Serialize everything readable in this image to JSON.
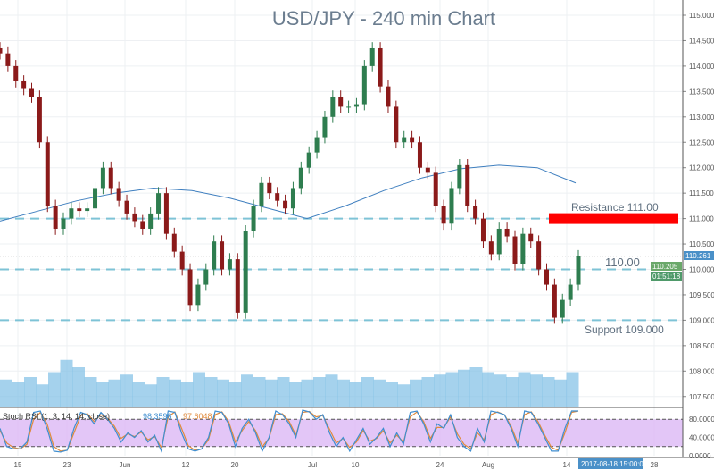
{
  "chart_data": {
    "type": "candlestick",
    "title": "USD/JPY - 240 min Chart",
    "price_axis": {
      "ticks": [
        "115.000",
        "114.500",
        "114.000",
        "113.500",
        "113.000",
        "112.500",
        "112.000",
        "111.500",
        "111.000",
        "110.500",
        "110.000",
        "109.500",
        "109.000",
        "108.500",
        "108.000",
        "107.500"
      ],
      "range": [
        107.25,
        115.25
      ]
    },
    "date_axis": {
      "ticks": [
        "15",
        "23",
        "Jun",
        "12",
        "20",
        "Jul",
        "10",
        "24",
        "Aug",
        "14",
        "28"
      ],
      "cursor_label": "2017-08-18 15:00:00"
    },
    "closes": [
      114.25,
      114.0,
      113.7,
      113.55,
      113.4,
      112.5,
      111.25,
      110.8,
      111.0,
      111.2,
      111.15,
      111.2,
      111.6,
      112.0,
      111.6,
      111.35,
      111.1,
      110.95,
      110.8,
      111.1,
      111.5,
      110.7,
      110.35,
      110.0,
      109.3,
      109.7,
      110.0,
      110.55,
      110.0,
      110.2,
      109.15,
      110.75,
      111.25,
      111.7,
      111.5,
      111.35,
      111.2,
      111.6,
      112.0,
      112.3,
      112.6,
      113.0,
      113.4,
      113.2,
      113.2,
      113.25,
      114.0,
      114.35,
      113.6,
      113.2,
      112.5,
      112.6,
      112.5,
      112.0,
      111.9,
      111.25,
      110.9,
      111.6,
      112.05,
      111.25,
      111.0,
      110.55,
      110.3,
      110.8,
      110.65,
      110.1,
      110.7,
      110.55,
      110.0,
      109.7,
      109.05,
      109.4,
      109.7,
      110.26
    ],
    "moving_average": [
      110.95,
      111.15,
      111.35,
      111.5,
      111.6,
      111.55,
      111.4,
      111.2,
      111.0,
      111.25,
      111.55,
      111.8,
      111.98,
      112.05,
      112.0,
      111.7
    ],
    "volume_relative": [
      0.55,
      0.5,
      0.6,
      0.45,
      0.7,
      0.95,
      0.8,
      0.6,
      0.5,
      0.55,
      0.65,
      0.5,
      0.45,
      0.6,
      0.55,
      0.5,
      0.7,
      0.6,
      0.55,
      0.5,
      0.65,
      0.6,
      0.55,
      0.6,
      0.5,
      0.55,
      0.6,
      0.65,
      0.55,
      0.5,
      0.6,
      0.55,
      0.5,
      0.45,
      0.55,
      0.6,
      0.65,
      0.7,
      0.75,
      0.8,
      0.7,
      0.65,
      0.6,
      0.7,
      0.65,
      0.6,
      0.55,
      0.7
    ],
    "stoch_rsi": {
      "label": "Stoch RSI (1, 3, 14, 14, close)",
      "k_value": "98.3596",
      "d_value": "97.6048",
      "levels": [
        "80.0000",
        "40.0000",
        "0.0000"
      ],
      "k": [
        60,
        20,
        15,
        15,
        30,
        95,
        98,
        60,
        10,
        8,
        12,
        60,
        95,
        90,
        70,
        95,
        80,
        60,
        30,
        50,
        40,
        55,
        30,
        45,
        10,
        98,
        95,
        50,
        15,
        10,
        15,
        40,
        98,
        95,
        70,
        20,
        60,
        80,
        50,
        10,
        40,
        98,
        90,
        70,
        40,
        100,
        96,
        80,
        90,
        50,
        20,
        40,
        10,
        35,
        60,
        25,
        40,
        60,
        20,
        50,
        25,
        95,
        98,
        70,
        30,
        70,
        60,
        90,
        40,
        20,
        10,
        60,
        30,
        98,
        95,
        90,
        60,
        20,
        98,
        95,
        70,
        40,
        10,
        10,
        60,
        98,
        98
      ],
      "d": [
        55,
        28,
        18,
        15,
        25,
        80,
        95,
        70,
        20,
        10,
        12,
        50,
        88,
        92,
        75,
        90,
        82,
        65,
        38,
        48,
        42,
        52,
        35,
        42,
        18,
        85,
        96,
        60,
        22,
        12,
        15,
        35,
        90,
        96,
        75,
        30,
        55,
        75,
        55,
        20,
        38,
        90,
        92,
        75,
        45,
        95,
        97,
        85,
        88,
        58,
        28,
        38,
        18,
        30,
        55,
        32,
        38,
        55,
        28,
        45,
        30,
        85,
        96,
        75,
        38,
        62,
        62,
        85,
        48,
        25,
        15,
        50,
        35,
        90,
        96,
        90,
        65,
        28,
        90,
        96,
        75,
        45,
        18,
        12,
        50,
        95,
        98
      ]
    },
    "levels": [
      {
        "price": 111.0,
        "label": "Resistance 111.00",
        "zone_color": "#ff0000"
      },
      {
        "price": 110.0,
        "label": "110.00"
      },
      {
        "price": 109.0,
        "label": "Support 109.000"
      }
    ],
    "current_price": {
      "last": "110.261",
      "bid": "110.205",
      "countdown": "01:51:18",
      "value": 110.261
    },
    "colors": {
      "up": "#2e7d4f",
      "down": "#8b1a1a",
      "ma": "#3f7fbf",
      "level": "#7ec3d6",
      "volume": "#7fbfe6",
      "stoch_band": "#dcb8f5",
      "k": "#3f8ed0",
      "d": "#e08a3c",
      "title": "#6b7d8f"
    }
  }
}
